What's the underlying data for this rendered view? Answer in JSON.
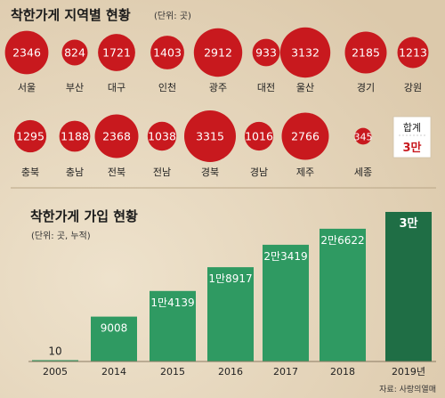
{
  "top": {
    "title": "착한가게 지역별 현황",
    "unit": "(단위: 곳)"
  },
  "bottom": {
    "title": "착한가게 가입 현황",
    "unit": "(단위: 곳, 누적)"
  },
  "total": {
    "label": "합계",
    "value": "3만"
  },
  "source": "자료: 사랑의열매",
  "colors": {
    "bubble": "#c8191e",
    "bar": "#2f9a62",
    "bar_highlight": "#1f6e45",
    "background": "#e5d6bd",
    "text": "#222222"
  },
  "chart_data": [
    {
      "type": "bubble",
      "rows": [
        [
          {
            "region": "서울",
            "value": 2346
          },
          {
            "region": "부산",
            "value": 824
          },
          {
            "region": "대구",
            "value": 1721
          },
          {
            "region": "인천",
            "value": 1403
          },
          {
            "region": "광주",
            "value": 2912
          },
          {
            "region": "대전",
            "value": 933
          },
          {
            "region": "울산",
            "value": 3132
          },
          {
            "region": "경기",
            "value": 2185
          },
          {
            "region": "강원",
            "value": 1213
          }
        ],
        [
          {
            "region": "충북",
            "value": 1295
          },
          {
            "region": "충남",
            "value": 1188
          },
          {
            "region": "전북",
            "value": 2368
          },
          {
            "region": "전남",
            "value": 1038
          },
          {
            "region": "경북",
            "value": 3315
          },
          {
            "region": "경남",
            "value": 1016
          },
          {
            "region": "제주",
            "value": 2766
          },
          {
            "region": "세종",
            "value": 345
          }
        ]
      ]
    },
    {
      "type": "bar",
      "categories": [
        "2005",
        "2014",
        "2015",
        "2016",
        "2017",
        "2018",
        "2019년"
      ],
      "values": [
        10,
        9008,
        14139,
        18917,
        23419,
        26622,
        30000
      ],
      "labels": [
        "10",
        "9008",
        "1만4139",
        "1만8917",
        "2만3419",
        "2만6622",
        "3만"
      ],
      "highlight": [
        "false",
        "false",
        "false",
        "false",
        "false",
        "false",
        "true"
      ]
    }
  ]
}
